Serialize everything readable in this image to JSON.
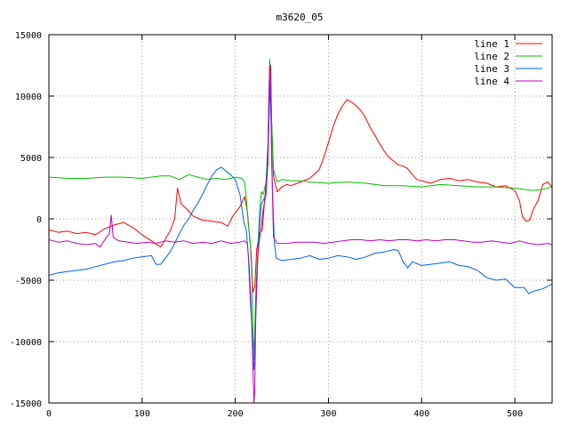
{
  "chart_data": {
    "type": "line",
    "title": "m3620_05",
    "xlabel": "",
    "ylabel": "",
    "xlim": [
      0,
      540
    ],
    "ylim": [
      -15000,
      15000
    ],
    "xticks": [
      0,
      100,
      200,
      300,
      400,
      500
    ],
    "yticks": [
      -15000,
      -10000,
      -5000,
      0,
      5000,
      10000,
      15000
    ],
    "grid": true,
    "legend_position": "top-right",
    "series": [
      {
        "name": "line 1",
        "color": "#ff0000",
        "points": [
          [
            0,
            -900
          ],
          [
            10,
            -1100
          ],
          [
            20,
            -1000
          ],
          [
            30,
            -1200
          ],
          [
            40,
            -1100
          ],
          [
            50,
            -1300
          ],
          [
            60,
            -800
          ],
          [
            70,
            -500
          ],
          [
            80,
            -300
          ],
          [
            90,
            -700
          ],
          [
            100,
            -1300
          ],
          [
            110,
            -1800
          ],
          [
            120,
            -2300
          ],
          [
            130,
            -1000
          ],
          [
            135,
            0
          ],
          [
            138,
            2500
          ],
          [
            142,
            1200
          ],
          [
            148,
            800
          ],
          [
            155,
            200
          ],
          [
            165,
            -100
          ],
          [
            175,
            -200
          ],
          [
            185,
            -300
          ],
          [
            192,
            -600
          ],
          [
            198,
            300
          ],
          [
            205,
            1000
          ],
          [
            210,
            1800
          ],
          [
            213,
            600
          ],
          [
            215,
            -1200
          ],
          [
            217,
            -2800
          ],
          [
            219,
            -6000
          ],
          [
            221,
            -5500
          ],
          [
            223,
            -2500
          ],
          [
            226,
            -1200
          ],
          [
            229,
            -900
          ],
          [
            232,
            2000
          ],
          [
            235,
            4500
          ],
          [
            237,
            10500
          ],
          [
            238,
            12500
          ],
          [
            239,
            8000
          ],
          [
            241,
            3500
          ],
          [
            245,
            2200
          ],
          [
            250,
            2600
          ],
          [
            255,
            2800
          ],
          [
            260,
            2700
          ],
          [
            270,
            3000
          ],
          [
            280,
            3300
          ],
          [
            290,
            4000
          ],
          [
            295,
            5000
          ],
          [
            300,
            6200
          ],
          [
            305,
            7500
          ],
          [
            310,
            8500
          ],
          [
            315,
            9200
          ],
          [
            320,
            9700
          ],
          [
            325,
            9500
          ],
          [
            330,
            9200
          ],
          [
            335,
            8800
          ],
          [
            340,
            8200
          ],
          [
            345,
            7400
          ],
          [
            350,
            6800
          ],
          [
            355,
            6100
          ],
          [
            360,
            5500
          ],
          [
            365,
            5000
          ],
          [
            370,
            4700
          ],
          [
            375,
            4400
          ],
          [
            380,
            4300
          ],
          [
            385,
            4100
          ],
          [
            390,
            3600
          ],
          [
            395,
            3200
          ],
          [
            400,
            3100
          ],
          [
            405,
            3000
          ],
          [
            410,
            2900
          ],
          [
            420,
            3200
          ],
          [
            430,
            3300
          ],
          [
            440,
            3100
          ],
          [
            450,
            3200
          ],
          [
            460,
            3000
          ],
          [
            470,
            2900
          ],
          [
            480,
            2600
          ],
          [
            490,
            2700
          ],
          [
            500,
            2300
          ],
          [
            505,
            1500
          ],
          [
            508,
            200
          ],
          [
            512,
            -200
          ],
          [
            516,
            -100
          ],
          [
            520,
            800
          ],
          [
            525,
            1500
          ],
          [
            530,
            2800
          ],
          [
            535,
            3000
          ],
          [
            540,
            2600
          ]
        ]
      },
      {
        "name": "line 2",
        "color": "#00c000",
        "points": [
          [
            0,
            3400
          ],
          [
            20,
            3300
          ],
          [
            40,
            3300
          ],
          [
            60,
            3400
          ],
          [
            80,
            3400
          ],
          [
            100,
            3300
          ],
          [
            120,
            3500
          ],
          [
            130,
            3500
          ],
          [
            140,
            3200
          ],
          [
            150,
            3600
          ],
          [
            160,
            3400
          ],
          [
            170,
            3200
          ],
          [
            180,
            3300
          ],
          [
            190,
            3200
          ],
          [
            200,
            3400
          ],
          [
            207,
            3300
          ],
          [
            210,
            3000
          ],
          [
            212,
            1500
          ],
          [
            214,
            -500
          ],
          [
            216,
            -1800
          ],
          [
            218,
            -5000
          ],
          [
            219,
            -9000
          ],
          [
            220,
            -11500
          ],
          [
            222,
            -6000
          ],
          [
            224,
            -2800
          ],
          [
            226,
            500
          ],
          [
            228,
            2200
          ],
          [
            230,
            2000
          ],
          [
            233,
            3000
          ],
          [
            235,
            6000
          ],
          [
            237,
            13000
          ],
          [
            239,
            8000
          ],
          [
            241,
            4000
          ],
          [
            245,
            3000
          ],
          [
            250,
            3200
          ],
          [
            260,
            3100
          ],
          [
            270,
            3100
          ],
          [
            280,
            3000
          ],
          [
            300,
            2900
          ],
          [
            320,
            3000
          ],
          [
            340,
            2900
          ],
          [
            360,
            2700
          ],
          [
            380,
            2700
          ],
          [
            400,
            2600
          ],
          [
            420,
            2800
          ],
          [
            440,
            2700
          ],
          [
            460,
            2600
          ],
          [
            480,
            2600
          ],
          [
            500,
            2500
          ],
          [
            520,
            2300
          ],
          [
            530,
            2400
          ],
          [
            540,
            2600
          ]
        ]
      },
      {
        "name": "line 3",
        "color": "#0060ff",
        "points": [
          [
            0,
            -4600
          ],
          [
            10,
            -4400
          ],
          [
            20,
            -4300
          ],
          [
            30,
            -4200
          ],
          [
            40,
            -4100
          ],
          [
            50,
            -3900
          ],
          [
            60,
            -3700
          ],
          [
            70,
            -3500
          ],
          [
            80,
            -3400
          ],
          [
            90,
            -3200
          ],
          [
            100,
            -3100
          ],
          [
            110,
            -3000
          ],
          [
            115,
            -3700
          ],
          [
            120,
            -3700
          ],
          [
            125,
            -3200
          ],
          [
            130,
            -2700
          ],
          [
            135,
            -2000
          ],
          [
            140,
            -1200
          ],
          [
            145,
            -500
          ],
          [
            150,
            0
          ],
          [
            155,
            700
          ],
          [
            160,
            1300
          ],
          [
            165,
            2000
          ],
          [
            170,
            2800
          ],
          [
            175,
            3500
          ],
          [
            180,
            4000
          ],
          [
            185,
            4200
          ],
          [
            190,
            3900
          ],
          [
            195,
            3600
          ],
          [
            200,
            3200
          ],
          [
            205,
            2000
          ],
          [
            209,
            -200
          ],
          [
            212,
            -1000
          ],
          [
            214,
            -3000
          ],
          [
            216,
            -6500
          ],
          [
            218,
            -9000
          ],
          [
            219,
            -11500
          ],
          [
            220,
            -12300
          ],
          [
            222,
            -8000
          ],
          [
            224,
            -3500
          ],
          [
            226,
            -500
          ],
          [
            228,
            1200
          ],
          [
            230,
            1500
          ],
          [
            232,
            1800
          ],
          [
            234,
            4000
          ],
          [
            236,
            7500
          ],
          [
            237,
            11000
          ],
          [
            238,
            9000
          ],
          [
            240,
            2000
          ],
          [
            242,
            -2000
          ],
          [
            244,
            -3200
          ],
          [
            250,
            -3400
          ],
          [
            260,
            -3300
          ],
          [
            270,
            -3200
          ],
          [
            280,
            -3000
          ],
          [
            290,
            -3300
          ],
          [
            300,
            -3200
          ],
          [
            310,
            -3000
          ],
          [
            320,
            -3100
          ],
          [
            330,
            -3300
          ],
          [
            340,
            -3100
          ],
          [
            350,
            -2800
          ],
          [
            360,
            -2700
          ],
          [
            370,
            -2500
          ],
          [
            375,
            -2600
          ],
          [
            380,
            -3500
          ],
          [
            385,
            -4000
          ],
          [
            390,
            -3500
          ],
          [
            400,
            -3800
          ],
          [
            410,
            -3700
          ],
          [
            420,
            -3600
          ],
          [
            430,
            -3500
          ],
          [
            440,
            -3800
          ],
          [
            450,
            -3900
          ],
          [
            460,
            -4200
          ],
          [
            470,
            -4800
          ],
          [
            480,
            -5000
          ],
          [
            490,
            -4900
          ],
          [
            500,
            -5600
          ],
          [
            510,
            -5600
          ],
          [
            515,
            -6100
          ],
          [
            520,
            -5900
          ],
          [
            530,
            -5700
          ],
          [
            540,
            -5300
          ]
        ]
      },
      {
        "name": "line 4",
        "color": "#c000c0",
        "points": [
          [
            0,
            -1700
          ],
          [
            10,
            -1900
          ],
          [
            20,
            -1800
          ],
          [
            30,
            -2000
          ],
          [
            40,
            -2100
          ],
          [
            50,
            -2000
          ],
          [
            55,
            -2300
          ],
          [
            60,
            -1700
          ],
          [
            65,
            -1200
          ],
          [
            67,
            300
          ],
          [
            69,
            -1500
          ],
          [
            75,
            -1800
          ],
          [
            85,
            -1900
          ],
          [
            95,
            -2000
          ],
          [
            105,
            -1900
          ],
          [
            115,
            -2000
          ],
          [
            125,
            -1800
          ],
          [
            135,
            -1900
          ],
          [
            145,
            -1800
          ],
          [
            155,
            -2000
          ],
          [
            165,
            -1900
          ],
          [
            175,
            -2000
          ],
          [
            185,
            -1800
          ],
          [
            195,
            -2000
          ],
          [
            205,
            -1900
          ],
          [
            210,
            -1800
          ],
          [
            213,
            -2000
          ],
          [
            215,
            -4000
          ],
          [
            217,
            -7000
          ],
          [
            219,
            -12000
          ],
          [
            220,
            -15000
          ],
          [
            221,
            -14000
          ],
          [
            222,
            -7500
          ],
          [
            224,
            -3000
          ],
          [
            226,
            -1700
          ],
          [
            228,
            -500
          ],
          [
            230,
            800
          ],
          [
            233,
            2000
          ],
          [
            235,
            4500
          ],
          [
            236,
            10000
          ],
          [
            237,
            12500
          ],
          [
            238,
            11000
          ],
          [
            239,
            5000
          ],
          [
            241,
            -1500
          ],
          [
            245,
            -2000
          ],
          [
            255,
            -2000
          ],
          [
            265,
            -1900
          ],
          [
            275,
            -1900
          ],
          [
            285,
            -1900
          ],
          [
            295,
            -2000
          ],
          [
            305,
            -1900
          ],
          [
            315,
            -1800
          ],
          [
            325,
            -1700
          ],
          [
            335,
            -1700
          ],
          [
            345,
            -1800
          ],
          [
            355,
            -1700
          ],
          [
            365,
            -1800
          ],
          [
            375,
            -1700
          ],
          [
            385,
            -1700
          ],
          [
            395,
            -1800
          ],
          [
            405,
            -1700
          ],
          [
            415,
            -1800
          ],
          [
            425,
            -1700
          ],
          [
            435,
            -1700
          ],
          [
            445,
            -1800
          ],
          [
            455,
            -1900
          ],
          [
            465,
            -1900
          ],
          [
            475,
            -1800
          ],
          [
            485,
            -1900
          ],
          [
            495,
            -2000
          ],
          [
            505,
            -1800
          ],
          [
            515,
            -2000
          ],
          [
            525,
            -2100
          ],
          [
            535,
            -2000
          ],
          [
            540,
            -2100
          ]
        ]
      }
    ]
  }
}
